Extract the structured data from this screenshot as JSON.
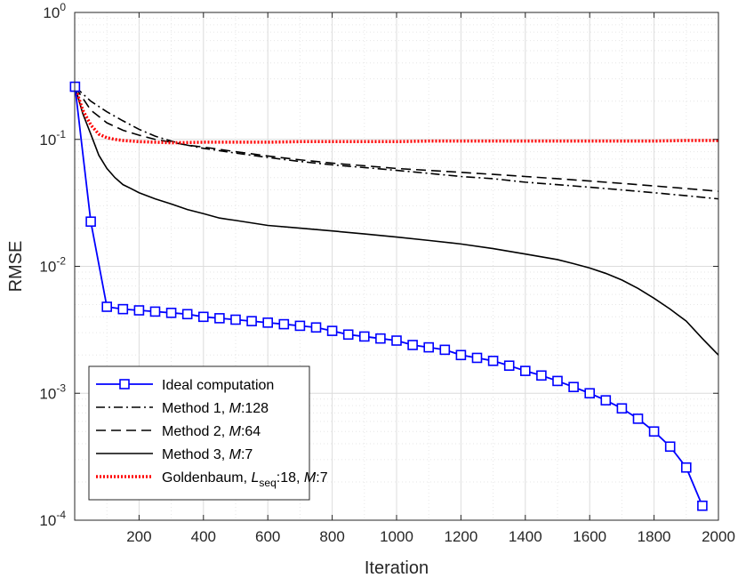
{
  "chart_data": {
    "type": "line",
    "xlabel": "Iteration",
    "ylabel": "RMSE",
    "xlim": [
      0,
      2000
    ],
    "ylim": [
      0.0001,
      1
    ],
    "yscale": "log",
    "grid": true,
    "minor_grid": true,
    "legend_position": "bottom-left",
    "x_ticks": [
      200,
      400,
      600,
      800,
      1000,
      1200,
      1400,
      1600,
      1800,
      2000
    ],
    "x_tick_labels": [
      "200",
      "400",
      "600",
      "800",
      "1000",
      "1200",
      "1400",
      "1600",
      "1800",
      "2000"
    ],
    "y_ticks": [
      0.0001,
      0.001,
      0.01,
      0.1,
      1
    ],
    "y_tick_labels": [
      {
        "base": "10",
        "exp": "-4"
      },
      {
        "base": "10",
        "exp": "-3"
      },
      {
        "base": "10",
        "exp": "-2"
      },
      {
        "base": "10",
        "exp": "-1"
      },
      {
        "base": "10",
        "exp": "0"
      }
    ],
    "series": [
      {
        "name": "Ideal computation",
        "color": "#0000ff",
        "style": "solid",
        "marker": "square",
        "x": [
          1,
          50,
          100,
          150,
          200,
          250,
          300,
          350,
          400,
          450,
          500,
          550,
          600,
          650,
          700,
          750,
          800,
          850,
          900,
          950,
          1000,
          1050,
          1100,
          1150,
          1200,
          1250,
          1300,
          1350,
          1400,
          1450,
          1500,
          1550,
          1600,
          1650,
          1700,
          1750,
          1800,
          1850,
          1900,
          1950
        ],
        "y": [
          0.26,
          0.0225,
          0.0048,
          0.0046,
          0.0045,
          0.0044,
          0.0043,
          0.0042,
          0.004,
          0.0039,
          0.0038,
          0.0037,
          0.0036,
          0.0035,
          0.0034,
          0.0033,
          0.0031,
          0.0029,
          0.0028,
          0.0027,
          0.0026,
          0.0024,
          0.0023,
          0.0022,
          0.002,
          0.0019,
          0.0018,
          0.00165,
          0.0015,
          0.00138,
          0.00125,
          0.00112,
          0.001,
          0.00088,
          0.00076,
          0.00063,
          0.0005,
          0.00038,
          0.00026,
          0.00013
        ]
      },
      {
        "name": "Method 1, M:128",
        "color": "#000000",
        "style": "dashdot",
        "x": [
          1,
          50,
          100,
          150,
          200,
          250,
          300,
          350,
          400,
          500,
          600,
          700,
          800,
          900,
          1000,
          1100,
          1200,
          1300,
          1400,
          1500,
          1600,
          1700,
          1800,
          1900,
          2000
        ],
        "y": [
          0.26,
          0.2,
          0.165,
          0.14,
          0.12,
          0.106,
          0.097,
          0.09,
          0.085,
          0.078,
          0.072,
          0.067,
          0.063,
          0.06,
          0.057,
          0.054,
          0.051,
          0.049,
          0.046,
          0.044,
          0.042,
          0.04,
          0.038,
          0.036,
          0.034
        ]
      },
      {
        "name": "Method 2, M:64",
        "color": "#000000",
        "style": "dashed",
        "x": [
          1,
          50,
          100,
          150,
          200,
          250,
          300,
          350,
          400,
          500,
          600,
          700,
          800,
          900,
          1000,
          1100,
          1200,
          1300,
          1400,
          1500,
          1600,
          1700,
          1800,
          1900,
          2000
        ],
        "y": [
          0.26,
          0.17,
          0.135,
          0.118,
          0.108,
          0.1,
          0.095,
          0.09,
          0.087,
          0.08,
          0.074,
          0.069,
          0.065,
          0.062,
          0.059,
          0.057,
          0.055,
          0.053,
          0.051,
          0.049,
          0.047,
          0.045,
          0.043,
          0.041,
          0.039
        ]
      },
      {
        "name": "Method 3, M:7",
        "color": "#000000",
        "style": "solid",
        "x": [
          1,
          25,
          50,
          75,
          100,
          125,
          150,
          175,
          200,
          250,
          300,
          350,
          400,
          450,
          500,
          600,
          700,
          800,
          900,
          1000,
          1100,
          1200,
          1300,
          1400,
          1500,
          1550,
          1600,
          1650,
          1700,
          1750,
          1800,
          1850,
          1900,
          1950,
          2000
        ],
        "y": [
          0.26,
          0.16,
          0.11,
          0.075,
          0.059,
          0.05,
          0.044,
          0.041,
          0.038,
          0.034,
          0.031,
          0.028,
          0.026,
          0.024,
          0.023,
          0.021,
          0.02,
          0.019,
          0.018,
          0.017,
          0.016,
          0.015,
          0.0138,
          0.0125,
          0.0113,
          0.0105,
          0.0097,
          0.0088,
          0.0078,
          0.0067,
          0.0056,
          0.0046,
          0.0037,
          0.0027,
          0.002
        ]
      },
      {
        "name": "Goldenbaum, Lseq:18, M:7",
        "color": "#ff0000",
        "style": "dotted",
        "x": [
          1,
          25,
          50,
          75,
          100,
          125,
          150,
          175,
          200,
          250,
          300,
          400,
          500,
          600,
          700,
          800,
          900,
          1000,
          1100,
          1200,
          1300,
          1400,
          1500,
          1600,
          1700,
          1800,
          1900,
          2000
        ],
        "y": [
          0.26,
          0.17,
          0.13,
          0.11,
          0.103,
          0.1,
          0.098,
          0.097,
          0.096,
          0.095,
          0.094,
          0.095,
          0.095,
          0.095,
          0.096,
          0.096,
          0.096,
          0.096,
          0.097,
          0.097,
          0.097,
          0.097,
          0.097,
          0.097,
          0.097,
          0.097,
          0.098,
          0.098
        ]
      }
    ]
  },
  "legend": {
    "entries": [
      {
        "parts": [
          {
            "t": "Ideal computation",
            "s": "n"
          }
        ]
      },
      {
        "parts": [
          {
            "t": "Method 1, ",
            "s": "n"
          },
          {
            "t": "M",
            "s": "i"
          },
          {
            "t": ":128",
            "s": "n"
          }
        ]
      },
      {
        "parts": [
          {
            "t": "Method 2, ",
            "s": "n"
          },
          {
            "t": "M",
            "s": "i"
          },
          {
            "t": ":64",
            "s": "n"
          }
        ]
      },
      {
        "parts": [
          {
            "t": "Method 3, ",
            "s": "n"
          },
          {
            "t": "M",
            "s": "i"
          },
          {
            "t": ":7",
            "s": "n"
          }
        ]
      },
      {
        "parts": [
          {
            "t": "Goldenbaum, ",
            "s": "n"
          },
          {
            "t": "L",
            "s": "i"
          },
          {
            "t": "seq",
            "s": "sub"
          },
          {
            "t": ":18, ",
            "s": "n"
          },
          {
            "t": "M",
            "s": "i"
          },
          {
            "t": ":7",
            "s": "n"
          }
        ]
      }
    ]
  }
}
